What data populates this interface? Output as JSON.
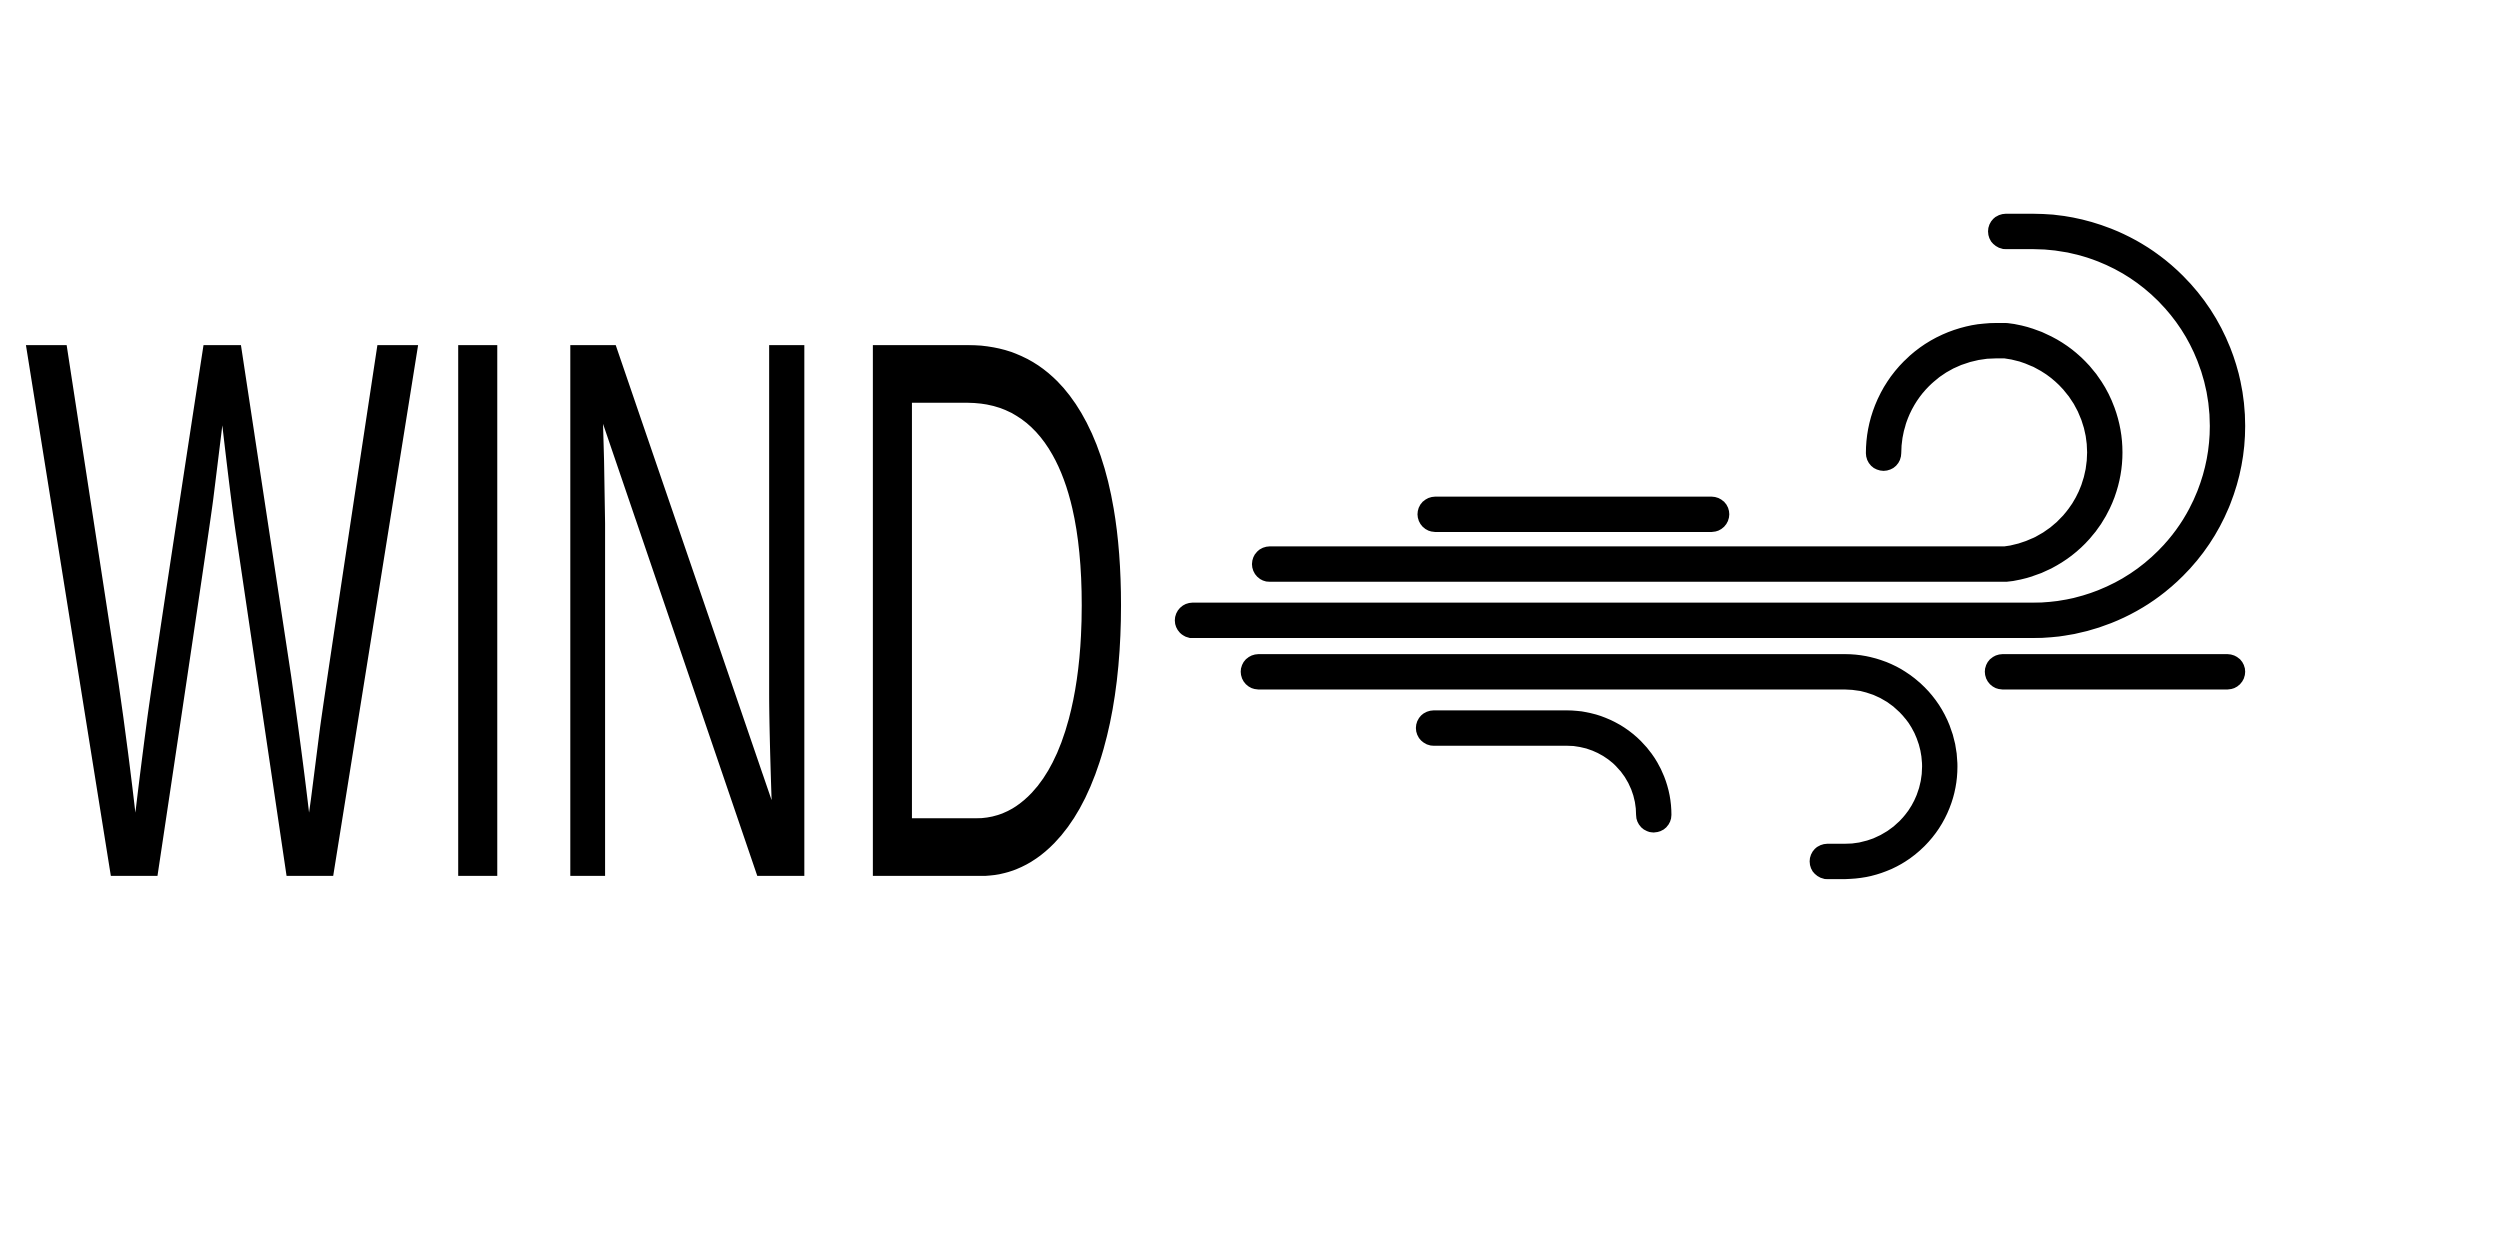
{
  "logo": {
    "text": "WIND"
  }
}
